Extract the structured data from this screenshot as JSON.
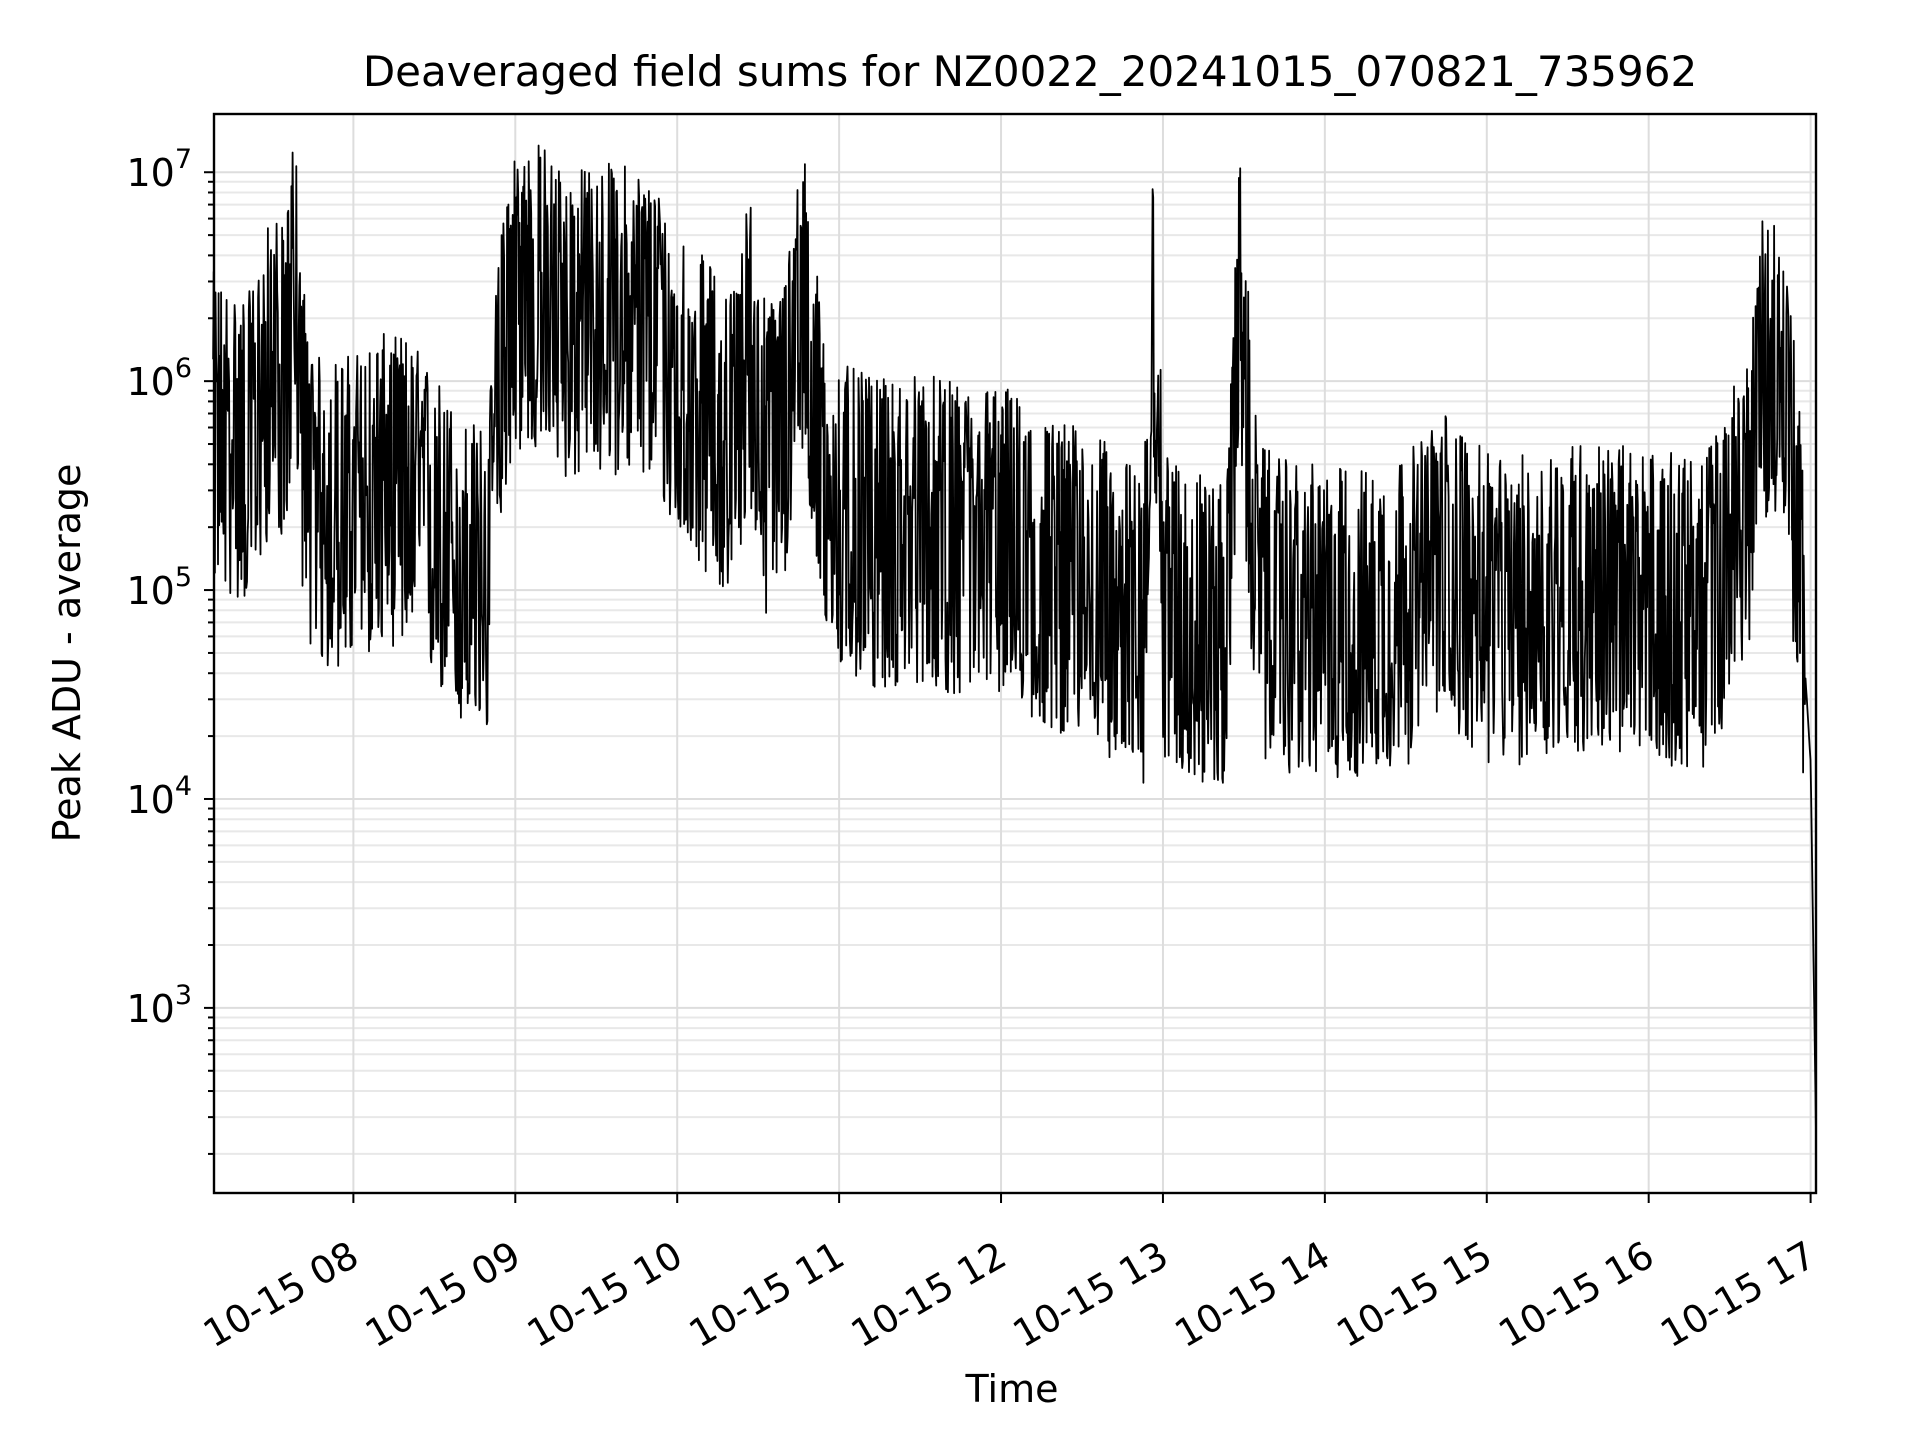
{
  "chart_data": {
    "type": "line",
    "title": "Deaveraged field sums for NZ0022_20241015_070821_735962",
    "xlabel": "Time",
    "ylabel": "Peak ADU - average",
    "yscale": "log",
    "ylim": [
      130,
      19000000
    ],
    "xlim": [
      "2024-10-15 07:08:21",
      "2024-10-15 17:02:00"
    ],
    "x_tick_labels": [
      "10-15 08",
      "10-15 09",
      "10-15 10",
      "10-15 11",
      "10-15 12",
      "10-15 13",
      "10-15 14",
      "10-15 15",
      "10-15 16",
      "10-15 17"
    ],
    "x_ticks": [
      "2024-10-15 08:00",
      "2024-10-15 09:00",
      "2024-10-15 10:00",
      "2024-10-15 11:00",
      "2024-10-15 12:00",
      "2024-10-15 13:00",
      "2024-10-15 14:00",
      "2024-10-15 15:00",
      "2024-10-15 16:00",
      "2024-10-15 17:00"
    ],
    "y_tick_labels": [
      {
        "base": "10",
        "exp": "3"
      },
      {
        "base": "10",
        "exp": "4"
      },
      {
        "base": "10",
        "exp": "5"
      },
      {
        "base": "10",
        "exp": "6"
      },
      {
        "base": "10",
        "exp": "7"
      }
    ],
    "y_ticks": [
      1000,
      10000,
      100000,
      1000000,
      10000000
    ],
    "grid": true,
    "line_color": "#000000",
    "series": [
      {
        "x": [
          "2024-10-15 07:08",
          "2024-10-15 07:15",
          "2024-10-15 07:22",
          "2024-10-15 07:30",
          "2024-10-15 07:35",
          "2024-10-15 07:38",
          "2024-10-15 07:41",
          "2024-10-15 07:45",
          "2024-10-15 07:50",
          "2024-10-15 08:00",
          "2024-10-15 08:10",
          "2024-10-15 08:20",
          "2024-10-15 08:30",
          "2024-10-15 08:40",
          "2024-10-15 08:50",
          "2024-10-15 08:55",
          "2024-10-15 09:00",
          "2024-10-15 09:10",
          "2024-10-15 09:20",
          "2024-10-15 09:30",
          "2024-10-15 09:40",
          "2024-10-15 09:50",
          "2024-10-15 10:00",
          "2024-10-15 10:10",
          "2024-10-15 10:20",
          "2024-10-15 10:27",
          "2024-10-15 10:33",
          "2024-10-15 10:40",
          "2024-10-15 10:46",
          "2024-10-15 10:50",
          "2024-10-15 10:55",
          "2024-10-15 11:00",
          "2024-10-15 11:15",
          "2024-10-15 11:30",
          "2024-10-15 11:45",
          "2024-10-15 12:00",
          "2024-10-15 12:15",
          "2024-10-15 12:30",
          "2024-10-15 12:45",
          "2024-10-15 12:53",
          "2024-10-15 12:56",
          "2024-10-15 13:00",
          "2024-10-15 13:10",
          "2024-10-15 13:20",
          "2024-10-15 13:24",
          "2024-10-15 13:28",
          "2024-10-15 13:35",
          "2024-10-15 13:45",
          "2024-10-15 14:00",
          "2024-10-15 14:15",
          "2024-10-15 14:30",
          "2024-10-15 14:45",
          "2024-10-15 15:00",
          "2024-10-15 15:15",
          "2024-10-15 15:30",
          "2024-10-15 15:45",
          "2024-10-15 16:00",
          "2024-10-15 16:10",
          "2024-10-15 16:20",
          "2024-10-15 16:30",
          "2024-10-15 16:38",
          "2024-10-15 16:41",
          "2024-10-15 16:45",
          "2024-10-15 16:50",
          "2024-10-15 16:55",
          "2024-10-15 16:58",
          "2024-10-15 17:00",
          "2024-10-15 17:01",
          "2024-10-15 17:02"
        ],
        "y": [
          600000,
          500000,
          480000,
          1200000,
          900000,
          3500000,
          600000,
          250000,
          220000,
          250000,
          300000,
          300000,
          200000,
          120000,
          110000,
          1500000,
          2500000,
          2500000,
          1800000,
          2000000,
          2000000,
          1800000,
          1000000,
          700000,
          500000,
          1500000,
          400000,
          600000,
          3000000,
          1000000,
          250000,
          220000,
          180000,
          200000,
          170000,
          180000,
          120000,
          110000,
          80000,
          60000,
          4000000,
          90000,
          70000,
          60000,
          65000,
          3000000,
          90000,
          75000,
          70000,
          70000,
          80000,
          130000,
          80000,
          80000,
          95000,
          90000,
          85000,
          80000,
          75000,
          150000,
          350000,
          900000,
          1500000,
          900000,
          200000,
          40000,
          15000,
          2000,
          250
        ]
      }
    ]
  }
}
